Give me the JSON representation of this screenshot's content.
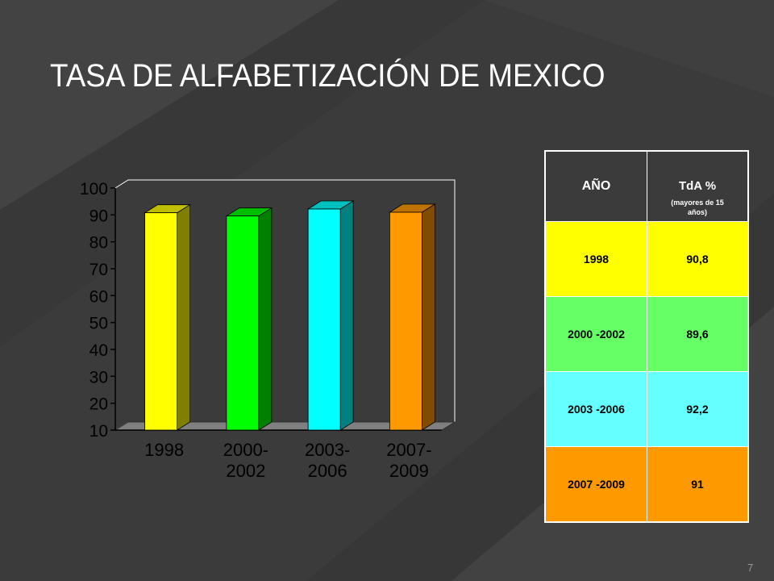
{
  "slide": {
    "title": "TASA DE ALFABETIZACIÓN DE MEXICO",
    "page_number": "7"
  },
  "chart_data": {
    "type": "bar",
    "categories": [
      [
        "1998"
      ],
      [
        "2000-",
        "2002"
      ],
      [
        "2003-",
        "2006"
      ],
      [
        "2007-",
        "2009"
      ]
    ],
    "values": [
      90.8,
      89.6,
      92.2,
      91
    ],
    "colors": [
      "#ffff00",
      "#00ff00",
      "#00ffff",
      "#ff9900"
    ],
    "yticks": [
      10,
      20,
      30,
      40,
      50,
      60,
      70,
      80,
      90,
      100
    ],
    "ylim": [
      10,
      100
    ],
    "title": "",
    "xlabel": "",
    "ylabel": "",
    "grid": false,
    "legend": "none",
    "style": "3d"
  },
  "table": {
    "header_year": "AÑO",
    "header_rate": "TdA %",
    "header_rate_sub": "(mayores de 15 años)",
    "rows": [
      {
        "year": "1998",
        "rate": "90,8",
        "color": "#ffff00"
      },
      {
        "year": "2000 -2002",
        "rate": "89,6",
        "color": "#66ff66"
      },
      {
        "year": "2003 -2006",
        "rate": "92,2",
        "color": "#66ffff"
      },
      {
        "year": "2007 -2009",
        "rate": "91",
        "color": "#ff9900"
      }
    ]
  }
}
